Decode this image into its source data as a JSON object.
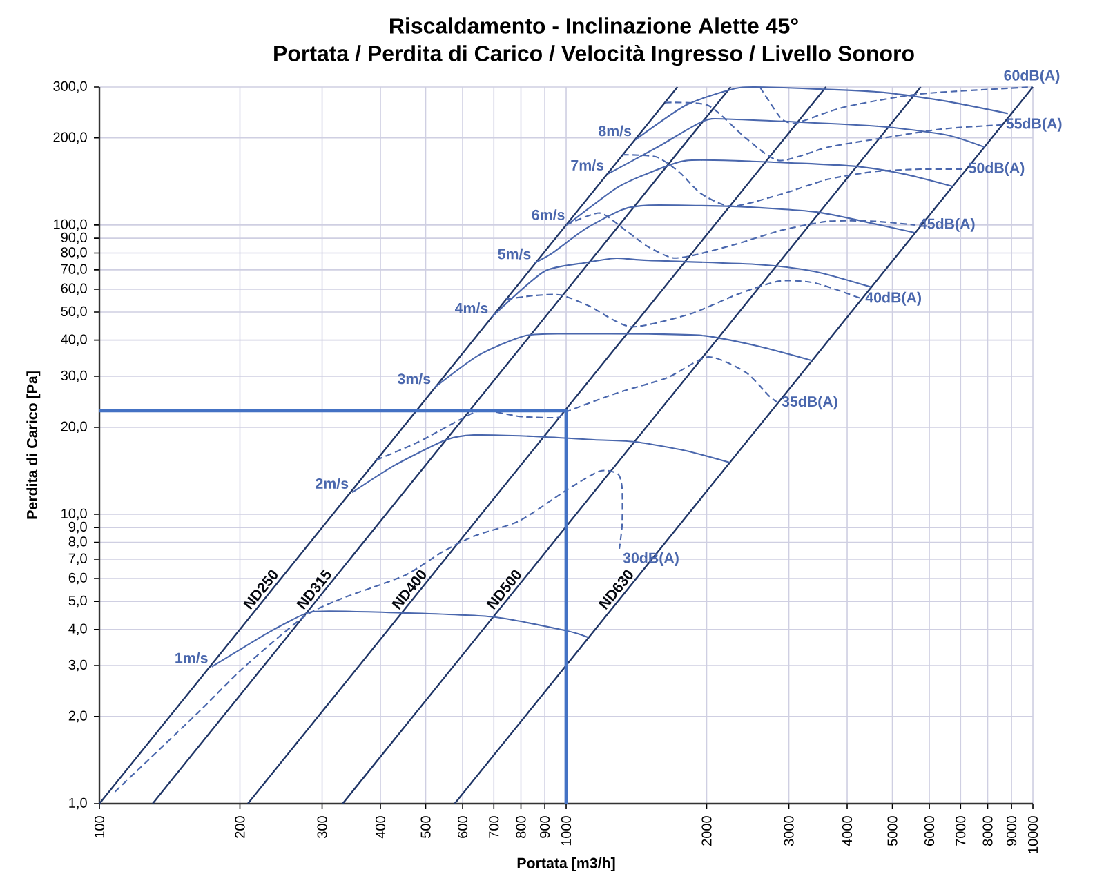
{
  "chart_data": {
    "type": "line",
    "title": "Riscaldamento - Inclinazione Alette 45°",
    "subtitle": "Portata / Perdita di Carico / Velocità Ingresso / Livello Sonoro",
    "xlabel": "Portata [m3/h]",
    "ylabel": "Perdita di Carico [Pa]",
    "log": "xy",
    "grid": true,
    "xlim": [
      100,
      10000
    ],
    "ylim": [
      1,
      300
    ],
    "xticks": [
      100,
      200,
      300,
      400,
      500,
      600,
      700,
      800,
      900,
      1000,
      2000,
      3000,
      4000,
      5000,
      6000,
      7000,
      8000,
      9000,
      10000
    ],
    "yticks": [
      {
        "value": 1,
        "label": "1,0"
      },
      {
        "value": 2,
        "label": "2,0"
      },
      {
        "value": 3,
        "label": "3,0"
      },
      {
        "value": 4,
        "label": "4,0"
      },
      {
        "value": 5,
        "label": "5,0"
      },
      {
        "value": 6,
        "label": "6,0"
      },
      {
        "value": 7,
        "label": "7,0"
      },
      {
        "value": 8,
        "label": "8,0"
      },
      {
        "value": 9,
        "label": "9,0"
      },
      {
        "value": 10,
        "label": "10,0"
      },
      {
        "value": 20,
        "label": "20,0"
      },
      {
        "value": 30,
        "label": "30,0"
      },
      {
        "value": 40,
        "label": "40,0"
      },
      {
        "value": 50,
        "label": "50,0"
      },
      {
        "value": 60,
        "label": "60,0"
      },
      {
        "value": 70,
        "label": "70,0"
      },
      {
        "value": 80,
        "label": "80,0"
      },
      {
        "value": 90,
        "label": "90,0"
      },
      {
        "value": 100,
        "label": "100,0"
      },
      {
        "value": 200,
        "label": "200,0"
      },
      {
        "value": 300,
        "label": "300,0"
      }
    ],
    "series": [
      {
        "name": "ND250",
        "color": "#1f3566",
        "line_style": "solid",
        "x": [
          100,
          1732
        ],
        "values": [
          1,
          300
        ]
      },
      {
        "name": "ND315",
        "color": "#1f3566",
        "line_style": "solid",
        "x": [
          130,
          2252
        ],
        "values": [
          1,
          300
        ]
      },
      {
        "name": "ND400",
        "color": "#1f3566",
        "line_style": "solid",
        "x": [
          208,
          3603
        ],
        "values": [
          1,
          300
        ]
      },
      {
        "name": "ND500",
        "color": "#1f3566",
        "line_style": "solid",
        "x": [
          332,
          5750
        ],
        "values": [
          1,
          300
        ]
      },
      {
        "name": "ND630",
        "color": "#1f3566",
        "line_style": "solid",
        "x": [
          577,
          10000
        ],
        "values": [
          1,
          300
        ]
      },
      {
        "name": "1m/s",
        "color": "#4a67ad",
        "line_style": "solid",
        "x": [
          174,
          230,
          274,
          300,
          451,
          696,
          1000,
          1117
        ],
        "values": [
          2.97,
          3.9,
          4.51,
          4.62,
          4.56,
          4.42,
          3.96,
          3.75
        ]
      },
      {
        "name": "2m/s",
        "color": "#4a67ad",
        "line_style": "solid",
        "x": [
          348,
          430,
          553,
          634,
          850,
          1147,
          1406,
          1800,
          2242
        ],
        "values": [
          11.9,
          14.8,
          18.1,
          18.8,
          18.6,
          18.1,
          17.8,
          16.6,
          15.1
        ]
      },
      {
        "name": "3m/s",
        "color": "#4a67ad",
        "line_style": "solid",
        "x": [
          522,
          650,
          815,
          1000,
          1500,
          1980,
          2600,
          3364
        ],
        "values": [
          27.4,
          35.5,
          41.4,
          42.1,
          42,
          41.4,
          38,
          34
        ]
      },
      {
        "name": "4m/s",
        "color": "#4a67ad",
        "line_style": "solid",
        "x": [
          693,
          896,
          1096,
          1280,
          1470,
          2590,
          3420,
          4506
        ],
        "values": [
          48.1,
          69,
          74,
          76.8,
          75.6,
          73,
          69,
          61
        ]
      },
      {
        "name": "5m/s",
        "color": "#4a67ad",
        "line_style": "solid",
        "x": [
          856,
          934,
          1100,
          1318,
          1500,
          2265,
          3420,
          4570,
          5600
        ],
        "values": [
          74,
          80,
          97,
          113,
          117,
          116,
          111,
          101,
          94
        ]
      },
      {
        "name": "6m/s",
        "color": "#4a67ad",
        "line_style": "solid",
        "x": [
          1012,
          1280,
          1470,
          1805,
          2500,
          4090,
          5300,
          6730
        ],
        "values": [
          101,
          134,
          149,
          167,
          166,
          160,
          150,
          136
        ]
      },
      {
        "name": "7m/s",
        "color": "#4a67ad",
        "line_style": "solid",
        "x": [
          1227,
          1570,
          1970,
          2265,
          4570,
          6500,
          7870
        ],
        "values": [
          150,
          186,
          229,
          232,
          220,
          205,
          186
        ]
      },
      {
        "name": "8m/s",
        "color": "#4a67ad",
        "line_style": "solid",
        "x": [
          1406,
          1800,
          2220,
          2540,
          4570,
          6420,
          8840
        ],
        "values": [
          197,
          259,
          292,
          300,
          289,
          269,
          243
        ]
      },
      {
        "name": "30dB(A)",
        "color": "#4a67ad",
        "line_style": "dashed",
        "x": [
          108,
          162,
          204,
          274,
          329,
          451,
          542,
          634,
          795,
          1000,
          1180,
          1290,
          1318,
          1318,
          1300
        ],
        "values": [
          1.1,
          2.05,
          2.96,
          4.42,
          5.1,
          6.15,
          7.4,
          8.4,
          9.5,
          12.1,
          14.1,
          13.8,
          12.3,
          9.2,
          7.6
        ]
      },
      {
        "name": "35dB(A)",
        "color": "#4a67ad",
        "line_style": "dashed",
        "x": [
          392,
          483,
          594,
          662,
          795,
          958,
          1000,
          1280,
          1650,
          2015,
          2423,
          2725,
          2845
        ],
        "values": [
          15.4,
          17.8,
          21.3,
          22.9,
          21.8,
          21.6,
          22.6,
          26.2,
          29.7,
          35,
          31,
          25.6,
          24.3
        ]
      },
      {
        "name": "40dB(A)",
        "color": "#4a67ad",
        "line_style": "dashed",
        "x": [
          744,
          850,
          973,
          1120,
          1376,
          1846,
          2320,
          2860,
          3420,
          4300
        ],
        "values": [
          55.4,
          57,
          57.3,
          52.5,
          44.5,
          49.3,
          57.5,
          64,
          63,
          55.6
        ]
      },
      {
        "name": "45dB(A)",
        "color": "#4a67ad",
        "line_style": "dashed",
        "x": [
          1000,
          1180,
          1350,
          1500,
          1690,
          1900,
          2320,
          2900,
          3646,
          4577,
          5600
        ],
        "values": [
          100,
          110,
          95,
          84,
          77,
          79,
          86,
          96,
          103,
          103,
          100
        ]
      },
      {
        "name": "50dB(A)",
        "color": "#4a67ad",
        "line_style": "dashed",
        "x": [
          1320,
          1560,
          1750,
          1950,
          2265,
          2900,
          3646,
          4577,
          5730,
          7150
        ],
        "values": [
          175,
          172,
          152,
          128,
          116,
          128,
          144,
          153,
          156,
          156
        ]
      },
      {
        "name": "55dB(A)",
        "color": "#4a67ad",
        "line_style": "dashed",
        "x": [
          1630,
          2015,
          2423,
          2860,
          3646,
          4786,
          6440,
          8600
        ],
        "values": [
          265,
          259,
          200,
          167,
          186,
          200,
          215,
          222
        ]
      },
      {
        "name": "60dB(A)",
        "color": "#4a67ad",
        "line_style": "dashed",
        "x": [
          2600,
          2725,
          2900,
          3100,
          3646,
          4090,
          5730,
          9950
        ],
        "values": [
          300,
          267,
          232,
          225,
          246,
          259,
          284,
          300
        ]
      },
      {
        "color": "#4472c4",
        "line_style": "solid",
        "x": [
          1000,
          1000,
          100
        ],
        "values": [
          1,
          22.8,
          22.8
        ]
      }
    ]
  }
}
